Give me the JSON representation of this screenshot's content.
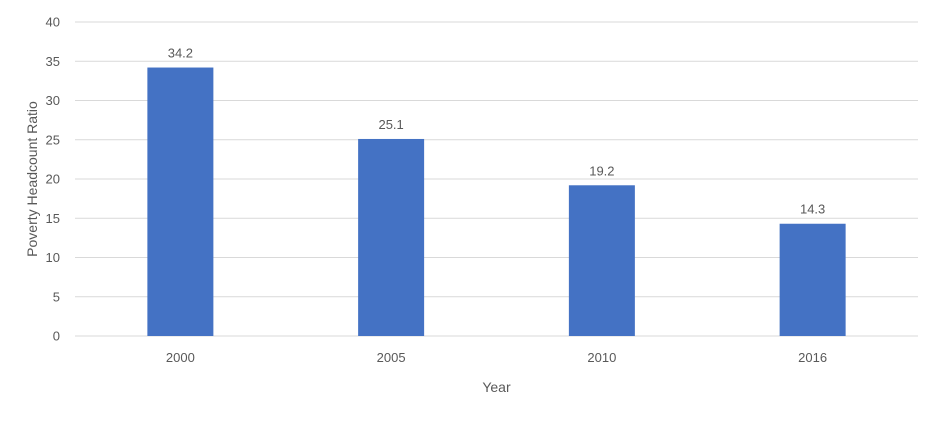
{
  "chart_data": {
    "type": "bar",
    "categories": [
      "2000",
      "2005",
      "2010",
      "2016"
    ],
    "values": [
      34.2,
      25.1,
      19.2,
      14.3
    ],
    "data_labels": [
      "34.2",
      "25.1",
      "19.2",
      "14.3"
    ],
    "title": "",
    "xlabel": "Year",
    "ylabel": "Poverty Headcount Ratio",
    "ylim": [
      0,
      40
    ],
    "yticks": [
      "0",
      "5",
      "10",
      "15",
      "20",
      "25",
      "30",
      "35",
      "40"
    ],
    "grid": true,
    "legend": "none",
    "bar_color": "#4472c4"
  }
}
